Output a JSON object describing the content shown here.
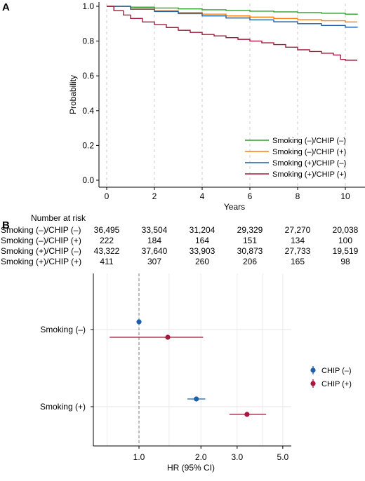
{
  "panels": {
    "a_label": "A",
    "b_label": "B"
  },
  "chart_data": [
    {
      "type": "line",
      "panel": "A",
      "title": "",
      "xlabel": "Years",
      "ylabel": "Probability",
      "xlim": [
        0,
        10.5
      ],
      "ylim": [
        0,
        1.0
      ],
      "x_ticks": [
        0,
        2,
        4,
        6,
        8,
        10
      ],
      "y_ticks": [
        0.0,
        0.2,
        0.4,
        0.6,
        0.8,
        1.0
      ],
      "y_tick_labels": [
        "0.0",
        "0.2",
        "0.4",
        "0.6",
        "0.8",
        "1.0"
      ],
      "grid": "vertical dashed",
      "legend_position": "bottom-right",
      "series": [
        {
          "name": "Smoking (–)/CHIP (–)",
          "color": "#2ca02c",
          "x": [
            0,
            1,
            2,
            3,
            4,
            5,
            6,
            7,
            8,
            9,
            10,
            10.5
          ],
          "y": [
            1.0,
            0.995,
            0.99,
            0.985,
            0.98,
            0.976,
            0.972,
            0.968,
            0.964,
            0.96,
            0.955,
            0.952
          ]
        },
        {
          "name": "Smoking (–)/CHIP (+)",
          "color": "#ff7f0e",
          "x": [
            0,
            1,
            2,
            3,
            4,
            5,
            6,
            7,
            8,
            9,
            10,
            10.5
          ],
          "y": [
            1.0,
            0.985,
            0.975,
            0.965,
            0.955,
            0.945,
            0.938,
            0.93,
            0.923,
            0.917,
            0.91,
            0.91
          ]
        },
        {
          "name": "Smoking (+)/CHIP (–)",
          "color": "#1f5fa8",
          "x": [
            0,
            1,
            2,
            3,
            4,
            5,
            6,
            7,
            8,
            9,
            10,
            10.5
          ],
          "y": [
            1.0,
            0.983,
            0.97,
            0.958,
            0.945,
            0.933,
            0.922,
            0.911,
            0.9,
            0.89,
            0.88,
            0.878
          ]
        },
        {
          "name": "Smoking (+)/CHIP (+)",
          "color": "#a8183a",
          "x": [
            0,
            0.3,
            0.7,
            1.0,
            1.5,
            2.0,
            2.5,
            3.0,
            3.5,
            4.0,
            4.5,
            5.0,
            5.5,
            6.0,
            6.5,
            7.0,
            7.5,
            8.0,
            8.5,
            9.0,
            9.5,
            9.8,
            10.0,
            10.5
          ],
          "y": [
            1.0,
            0.975,
            0.95,
            0.93,
            0.91,
            0.895,
            0.878,
            0.862,
            0.85,
            0.838,
            0.83,
            0.82,
            0.81,
            0.8,
            0.79,
            0.78,
            0.765,
            0.75,
            0.74,
            0.73,
            0.72,
            0.695,
            0.69,
            0.69
          ]
        }
      ]
    },
    {
      "type": "scatter",
      "panel": "B",
      "title": "",
      "xlabel": "HR (95% CI)",
      "ylabel": "",
      "x_scale": "log",
      "xlim": [
        0.6,
        5.5
      ],
      "x_ticks": [
        1.0,
        2.0,
        3.0,
        5.0
      ],
      "x_tick_labels": [
        "1.0",
        "2.0",
        "3.0",
        "5.0"
      ],
      "reference_line": 1.0,
      "categories": [
        "Smoking (–)",
        "Smoking (+)"
      ],
      "legend_position": "right",
      "series": [
        {
          "name": "CHIP (–)",
          "color": "#1f5fa8",
          "hr": [
            1.0,
            1.9
          ],
          "lower": [
            1.0,
            1.72
          ],
          "upper": [
            1.0,
            2.1
          ]
        },
        {
          "name": "CHIP (+)",
          "color": "#a8183a",
          "hr": [
            1.38,
            3.35
          ],
          "lower": [
            0.72,
            2.75
          ],
          "upper": [
            2.05,
            4.15
          ]
        }
      ]
    }
  ],
  "risk_table": {
    "title": "Number at risk",
    "rows": [
      {
        "label": "Smoking (–)/CHIP (–)",
        "values": [
          "36,495",
          "33,504",
          "31,204",
          "29,329",
          "27,270",
          "20,038"
        ]
      },
      {
        "label": "Smoking (–)/CHIP (+)",
        "values": [
          "222",
          "184",
          "164",
          "151",
          "134",
          "100"
        ]
      },
      {
        "label": "Smoking (+)/CHIP (–)",
        "values": [
          "43,322",
          "37,640",
          "33,903",
          "30,873",
          "27,733",
          "19,519"
        ]
      },
      {
        "label": "Smoking (+)/CHIP (+)",
        "values": [
          "411",
          "307",
          "260",
          "206",
          "165",
          "98"
        ]
      }
    ]
  }
}
